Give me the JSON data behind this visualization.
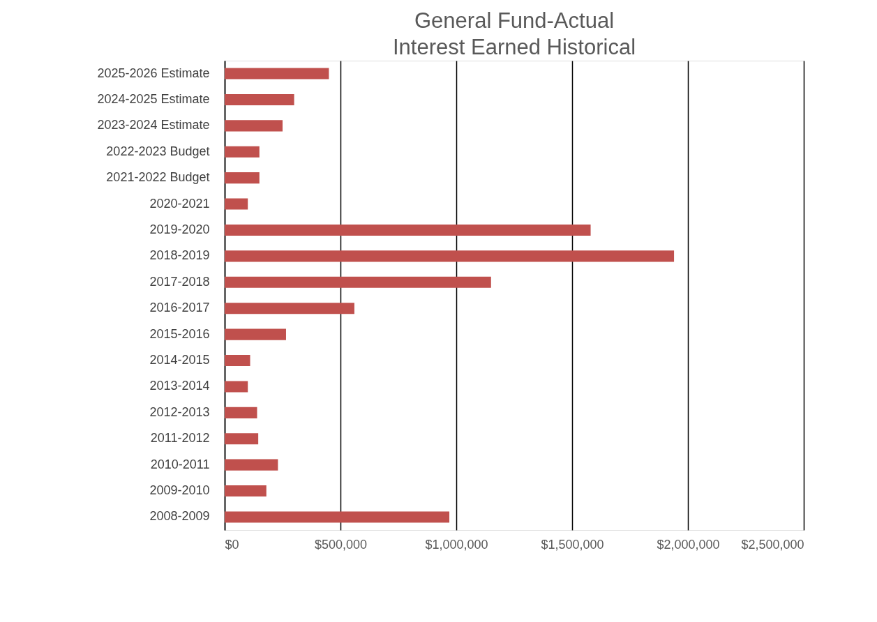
{
  "chart_data": {
    "type": "bar",
    "orientation": "horizontal",
    "title": [
      "General Fund-Actual",
      "Interest Earned Historical"
    ],
    "categories": [
      "2025-2026 Estimate",
      "2024-2025 Estimate",
      "2023-2024 Estimate",
      "2022-2023 Budget",
      "2021-2022 Budget",
      "2020-2021",
      "2019-2020",
      "2018-2019",
      "2017-2018",
      "2016-2017",
      "2015-2016",
      "2014-2015",
      "2013-2014",
      "2012-2013",
      "2011-2012",
      "2010-2011",
      "2009-2010",
      "2008-2009"
    ],
    "values": [
      450000,
      300000,
      250000,
      150000,
      150000,
      100000,
      1580000,
      1940000,
      1150000,
      560000,
      265000,
      110000,
      100000,
      140000,
      145000,
      230000,
      180000,
      970000
    ],
    "color": "#c0504d",
    "xlim": [
      0,
      2500000
    ],
    "xticks": [
      {
        "value": 0,
        "label": "$0"
      },
      {
        "value": 500000,
        "label": "$500,000"
      },
      {
        "value": 1000000,
        "label": "$1,000,000"
      },
      {
        "value": 1500000,
        "label": "$1,500,000"
      },
      {
        "value": 2000000,
        "label": "$2,000,000"
      },
      {
        "value": 2500000,
        "label": "$2,500,000"
      }
    ],
    "grid": "x"
  }
}
